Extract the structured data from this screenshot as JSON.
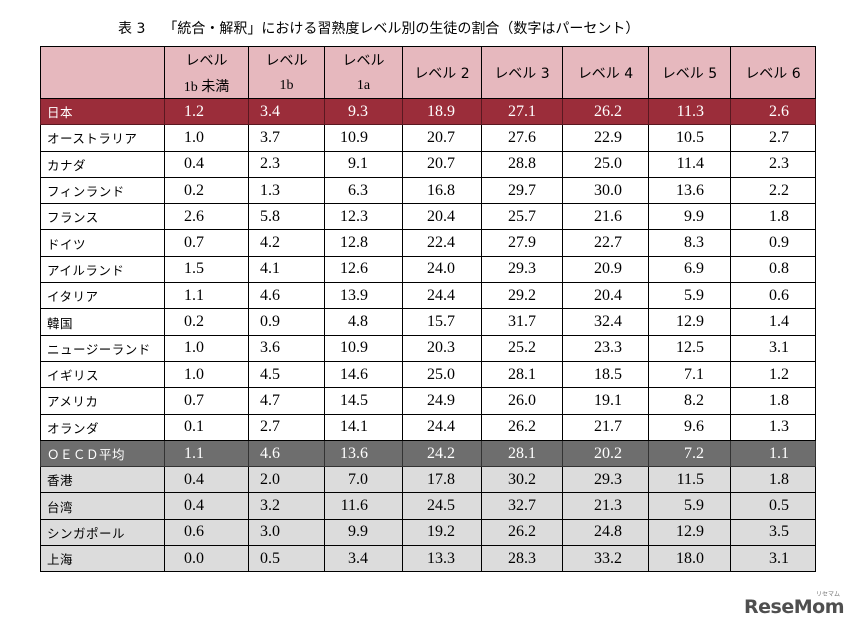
{
  "caption": {
    "number": "表 3",
    "title": "「統合・解釈」における習熟度レベル別の生徒の割合（数字はパーセント）"
  },
  "header": {
    "row1": [
      "",
      "レベル",
      "レベル",
      "レベル",
      "レベル 2",
      "レベル 3",
      "レベル 4",
      "レベル 5",
      "レベル 6"
    ],
    "row2": [
      "",
      "1b 未満",
      "1b",
      "1a",
      "",
      "",
      "",
      "",
      ""
    ]
  },
  "rows": [
    {
      "name": "日本",
      "values": [
        "1.2",
        "3.4",
        "9.3",
        "18.9",
        "27.1",
        "26.2",
        "11.3",
        "2.6"
      ],
      "style": "japan"
    },
    {
      "name": "オーストラリア",
      "values": [
        "1.0",
        "3.7",
        "10.9",
        "20.7",
        "27.6",
        "22.9",
        "10.5",
        "2.7"
      ],
      "style": ""
    },
    {
      "name": "カナダ",
      "values": [
        "0.4",
        "2.3",
        "9.1",
        "20.7",
        "28.8",
        "25.0",
        "11.4",
        "2.3"
      ],
      "style": ""
    },
    {
      "name": "フィンランド",
      "values": [
        "0.2",
        "1.3",
        "6.3",
        "16.8",
        "29.7",
        "30.0",
        "13.6",
        "2.2"
      ],
      "style": ""
    },
    {
      "name": "フランス",
      "values": [
        "2.6",
        "5.8",
        "12.3",
        "20.4",
        "25.7",
        "21.6",
        "9.9",
        "1.8"
      ],
      "style": ""
    },
    {
      "name": "ドイツ",
      "values": [
        "0.7",
        "4.2",
        "12.8",
        "22.4",
        "27.9",
        "22.7",
        "8.3",
        "0.9"
      ],
      "style": ""
    },
    {
      "name": "アイルランド",
      "values": [
        "1.5",
        "4.1",
        "12.6",
        "24.0",
        "29.3",
        "20.9",
        "6.9",
        "0.8"
      ],
      "style": ""
    },
    {
      "name": "イタリア",
      "values": [
        "1.1",
        "4.6",
        "13.9",
        "24.4",
        "29.2",
        "20.4",
        "5.9",
        "0.6"
      ],
      "style": ""
    },
    {
      "name": "韓国",
      "values": [
        "0.2",
        "0.9",
        "4.8",
        "15.7",
        "31.7",
        "32.4",
        "12.9",
        "1.4"
      ],
      "style": ""
    },
    {
      "name": "ニュージーランド",
      "values": [
        "1.0",
        "3.6",
        "10.9",
        "20.3",
        "25.2",
        "23.3",
        "12.5",
        "3.1"
      ],
      "style": ""
    },
    {
      "name": "イギリス",
      "values": [
        "1.0",
        "4.5",
        "14.6",
        "25.0",
        "28.1",
        "18.5",
        "7.1",
        "1.2"
      ],
      "style": ""
    },
    {
      "name": "アメリカ",
      "values": [
        "0.7",
        "4.7",
        "14.5",
        "24.9",
        "26.0",
        "19.1",
        "8.2",
        "1.8"
      ],
      "style": ""
    },
    {
      "name": "オランダ",
      "values": [
        "0.1",
        "2.7",
        "14.1",
        "24.4",
        "26.2",
        "21.7",
        "9.6",
        "1.3"
      ],
      "style": ""
    },
    {
      "name": "ＯＥＣＤ平均",
      "values": [
        "1.1",
        "4.6",
        "13.6",
        "24.2",
        "28.1",
        "20.2",
        "7.2",
        "1.1"
      ],
      "style": "oecd"
    },
    {
      "name": "香港",
      "values": [
        "0.4",
        "2.0",
        "7.0",
        "17.8",
        "30.2",
        "29.3",
        "11.5",
        "1.8"
      ],
      "style": "asia"
    },
    {
      "name": "台湾",
      "values": [
        "0.4",
        "3.2",
        "11.6",
        "24.5",
        "32.7",
        "21.3",
        "5.9",
        "0.5"
      ],
      "style": "asia"
    },
    {
      "name": "シンガポール",
      "values": [
        "0.6",
        "3.0",
        "9.9",
        "19.2",
        "26.2",
        "24.8",
        "12.9",
        "3.5"
      ],
      "style": "asia"
    },
    {
      "name": "上海",
      "values": [
        "0.0",
        "0.5",
        "3.4",
        "13.3",
        "28.3",
        "33.2",
        "18.0",
        "3.1"
      ],
      "style": "asia"
    }
  ],
  "watermark": {
    "logo": "ReseMom",
    "sub": "リセマム"
  }
}
